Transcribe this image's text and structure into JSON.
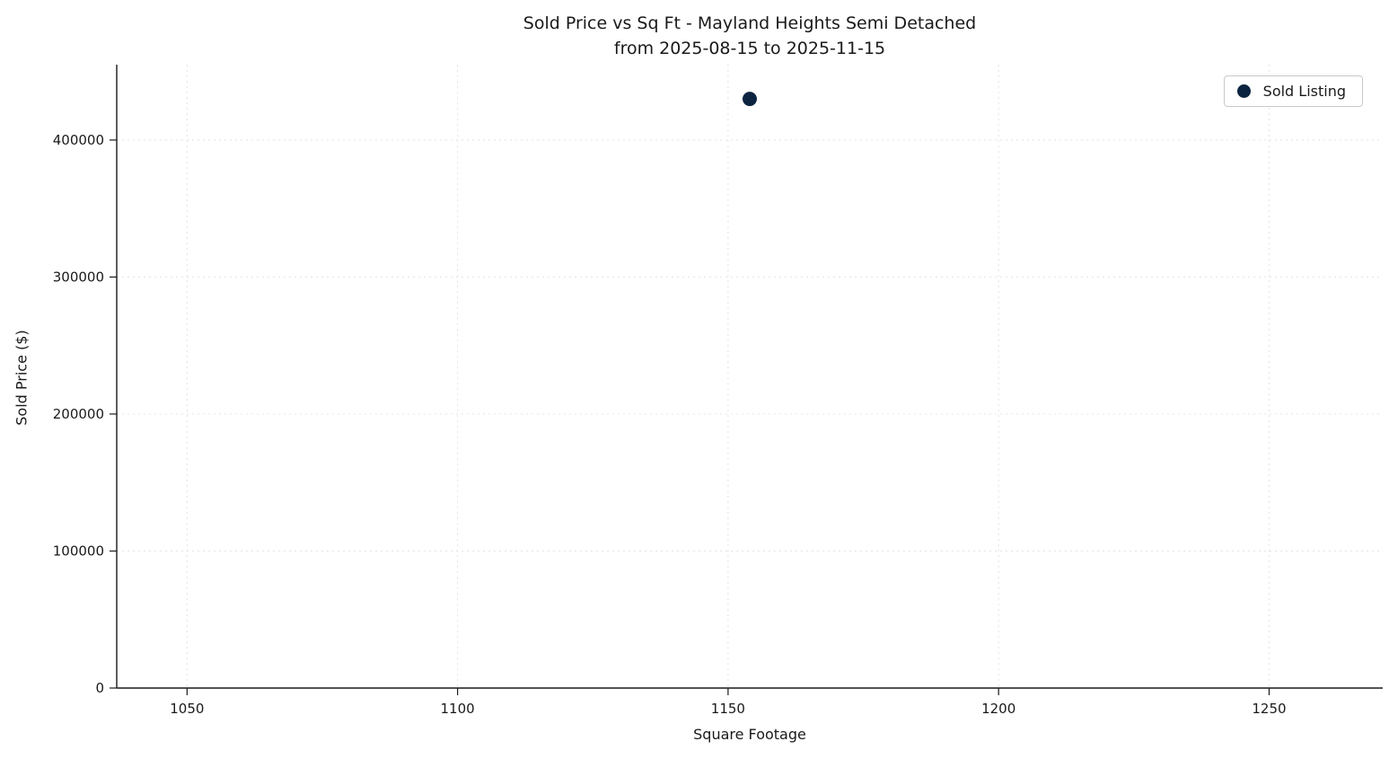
{
  "chart_data": {
    "type": "scatter",
    "title_line1": "Sold Price vs Sq Ft - Mayland Heights Semi Detached",
    "title_line2": "from 2025-08-15 to 2025-11-15",
    "xlabel": "Square Footage",
    "ylabel": "Sold Price ($)",
    "xlim": [
      1037,
      1271
    ],
    "ylim": [
      0,
      455000
    ],
    "xticks": [
      1050,
      1100,
      1150,
      1200,
      1250
    ],
    "yticks": [
      0,
      100000,
      200000,
      300000,
      400000
    ],
    "grid": true,
    "grid_style": "dashed",
    "legend": {
      "position": "upper right",
      "entries": [
        {
          "label": "Sold Listing",
          "marker_color": "#0d2440"
        }
      ]
    },
    "series": [
      {
        "name": "Sold Listing",
        "color": "#0d2440",
        "points": [
          {
            "x": 1154,
            "y": 430000
          }
        ]
      }
    ]
  }
}
